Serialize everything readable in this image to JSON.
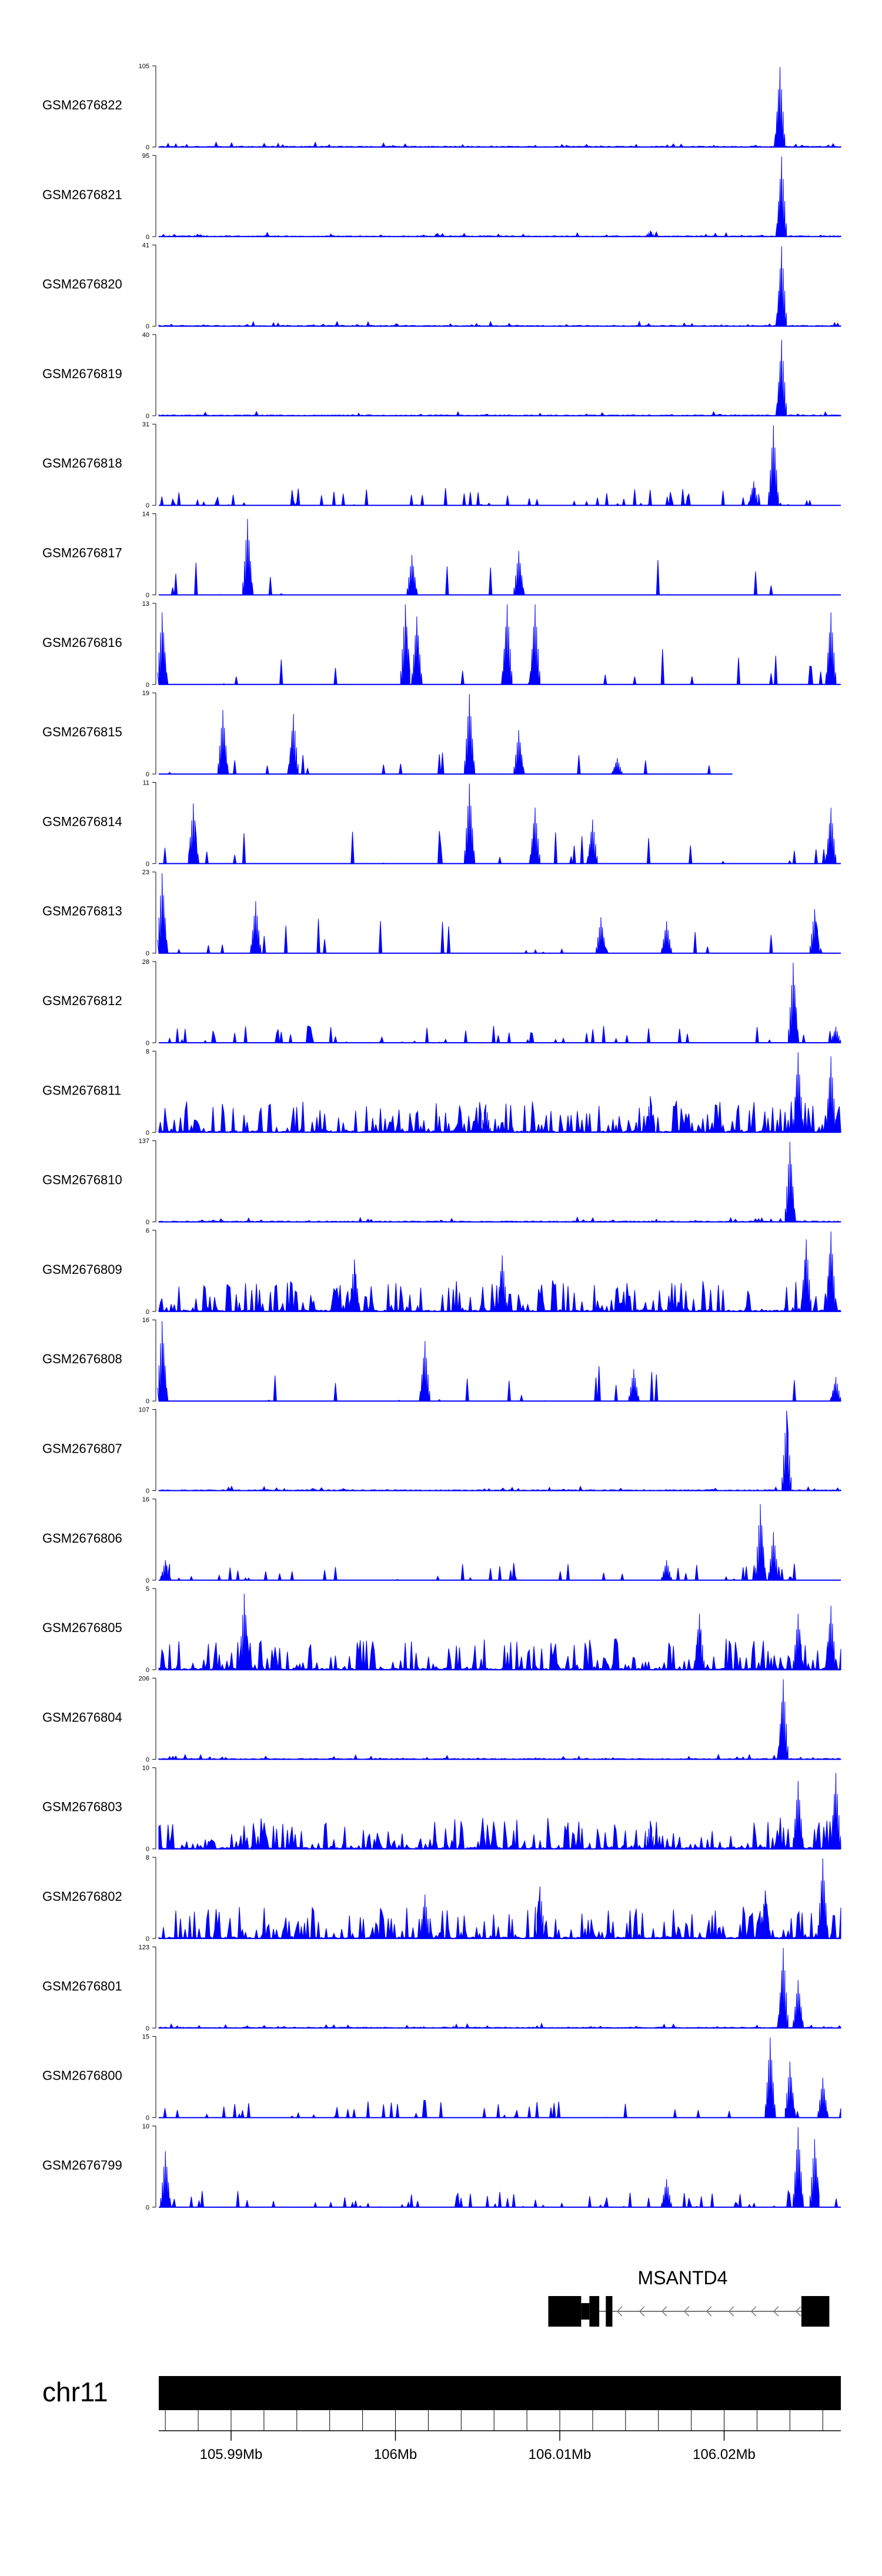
{
  "chart_data": {
    "type": "area",
    "genome": "chr11",
    "xlim_mb": [
      105.9856,
      106.0271
    ],
    "fill_color": "#0000ff",
    "tracks": [
      {
        "name": "GSM2676822",
        "ymax": "105",
        "ymin": "0",
        "profile": "dense_low",
        "peaks": [
          [
            106.0234,
            1.0
          ]
        ]
      },
      {
        "name": "GSM2676821",
        "ymax": "95",
        "ymin": "0",
        "profile": "dense_low",
        "peaks": [
          [
            106.0235,
            1.0
          ],
          [
            106.0155,
            0.07
          ]
        ]
      },
      {
        "name": "GSM2676820",
        "ymax": "41",
        "ymin": "0",
        "profile": "dense_low",
        "peaks": [
          [
            106.0235,
            1.0
          ]
        ]
      },
      {
        "name": "GSM2676819",
        "ymax": "40",
        "ymin": "0",
        "profile": "dense_low",
        "peaks": [
          [
            106.0235,
            0.95
          ]
        ]
      },
      {
        "name": "GSM2676818",
        "ymax": "31",
        "ymin": "0",
        "profile": "dense_mid",
        "peaks": [
          [
            106.023,
            1.0
          ],
          [
            106.0218,
            0.3
          ]
        ]
      },
      {
        "name": "GSM2676817",
        "ymax": "14",
        "ymin": "0",
        "profile": "sparse",
        "peaks": [
          [
            105.991,
            0.95
          ],
          [
            106.0075,
            0.55
          ],
          [
            106.001,
            0.5
          ]
        ]
      },
      {
        "name": "GSM2676816",
        "ymax": "13",
        "ymin": "0",
        "profile": "sparse",
        "peaks": [
          [
            106.0006,
            1.0
          ],
          [
            106.0068,
            1.0
          ],
          [
            106.0085,
            1.0
          ],
          [
            106.0013,
            0.85
          ],
          [
            105.9858,
            0.9
          ],
          [
            106.0265,
            0.9
          ]
        ]
      },
      {
        "name": "GSM2676815",
        "ymax": "19",
        "ymin": "0",
        "profile": "very_sparse",
        "peaks": [
          [
            106.0045,
            1.0
          ],
          [
            105.9895,
            0.8
          ],
          [
            105.9938,
            0.75
          ],
          [
            106.0075,
            0.55
          ],
          [
            106.0135,
            0.2
          ]
        ],
        "end_mb": 106.0205
      },
      {
        "name": "GSM2676814",
        "ymax": "11",
        "ymin": "0",
        "profile": "sparse",
        "peaks": [
          [
            106.0045,
            1.0
          ],
          [
            105.9877,
            0.75
          ],
          [
            106.0265,
            0.7
          ],
          [
            106.0085,
            0.7
          ],
          [
            106.012,
            0.55
          ]
        ]
      },
      {
        "name": "GSM2676813",
        "ymax": "23",
        "ymin": "0",
        "profile": "sparse",
        "peaks": [
          [
            105.9858,
            1.0
          ],
          [
            105.9915,
            0.65
          ],
          [
            106.0255,
            0.55
          ],
          [
            106.0165,
            0.4
          ],
          [
            106.0125,
            0.45
          ]
        ]
      },
      {
        "name": "GSM2676812",
        "ymax": "28",
        "ymin": "0",
        "profile": "dense_mid",
        "peaks": [
          [
            106.0242,
            1.0
          ],
          [
            106.0268,
            0.2
          ]
        ]
      },
      {
        "name": "GSM2676811",
        "ymax": "8",
        "ymin": "0",
        "profile": "dense_high",
        "peaks": [
          [
            106.0245,
            1.0
          ],
          [
            106.0265,
            0.95
          ],
          [
            106.0155,
            0.45
          ],
          [
            106.0055,
            0.35
          ]
        ]
      },
      {
        "name": "GSM2676810",
        "ymax": "137",
        "ymin": "0",
        "profile": "dense_low",
        "peaks": [
          [
            106.024,
            1.0
          ]
        ]
      },
      {
        "name": "GSM2676809",
        "ymax": "6",
        "ymin": "0",
        "profile": "dense_high",
        "peaks": [
          [
            106.0265,
            1.0
          ],
          [
            106.025,
            0.9
          ],
          [
            106.0065,
            0.7
          ],
          [
            105.9975,
            0.65
          ]
        ]
      },
      {
        "name": "GSM2676808",
        "ymax": "16",
        "ymin": "0",
        "profile": "sparse",
        "peaks": [
          [
            105.9858,
            1.0
          ],
          [
            106.0018,
            0.75
          ],
          [
            106.0268,
            0.3
          ],
          [
            106.0145,
            0.4
          ]
        ]
      },
      {
        "name": "GSM2676807",
        "ymax": "107",
        "ymin": "0",
        "profile": "dense_low",
        "peaks": [
          [
            106.0238,
            1.0
          ]
        ]
      },
      {
        "name": "GSM2676806",
        "ymax": "16",
        "ymin": "0",
        "profile": "dense_mid",
        "peaks": [
          [
            106.0222,
            0.95
          ],
          [
            106.023,
            0.6
          ],
          [
            105.986,
            0.25
          ],
          [
            106.0165,
            0.25
          ]
        ]
      },
      {
        "name": "GSM2676805",
        "ymax": "5",
        "ymin": "0",
        "profile": "dense_high",
        "peaks": [
          [
            105.9908,
            0.95
          ],
          [
            106.0265,
            0.8
          ],
          [
            106.0245,
            0.7
          ],
          [
            106.0185,
            0.7
          ]
        ]
      },
      {
        "name": "GSM2676804",
        "ymax": "206",
        "ymin": "0",
        "profile": "dense_low",
        "peaks": [
          [
            106.0236,
            1.0
          ]
        ]
      },
      {
        "name": "GSM2676803",
        "ymax": "10",
        "ymin": "0",
        "profile": "dense_high",
        "peaks": [
          [
            106.0268,
            0.95
          ],
          [
            106.0245,
            0.85
          ],
          [
            106.0155,
            0.35
          ]
        ]
      },
      {
        "name": "GSM2676802",
        "ymax": "8",
        "ymin": "0",
        "profile": "dense_high",
        "peaks": [
          [
            106.026,
            1.0
          ],
          [
            106.0088,
            0.65
          ],
          [
            106.0018,
            0.55
          ],
          [
            106.0225,
            0.6
          ]
        ]
      },
      {
        "name": "GSM2676801",
        "ymax": "123",
        "ymin": "0",
        "profile": "dense_low",
        "peaks": [
          [
            106.0236,
            1.0
          ],
          [
            106.0245,
            0.6
          ]
        ]
      },
      {
        "name": "GSM2676800",
        "ymax": "15",
        "ymin": "0",
        "profile": "dense_mid",
        "peaks": [
          [
            106.0228,
            1.0
          ],
          [
            106.024,
            0.7
          ],
          [
            106.026,
            0.5
          ]
        ]
      },
      {
        "name": "GSM2676799",
        "ymax": "10",
        "ymin": "0",
        "profile": "dense_mid",
        "peaks": [
          [
            106.0245,
            1.0
          ],
          [
            106.0255,
            0.85
          ],
          [
            105.986,
            0.7
          ],
          [
            106.0165,
            0.35
          ]
        ]
      }
    ],
    "gene": {
      "name": "MSANTD4",
      "strand": "-",
      "start_mb": 106.0093,
      "end_mb": 106.0264,
      "exons": [
        [
          106.0093,
          106.0113
        ],
        [
          106.0118,
          106.0124
        ],
        [
          106.0128,
          106.0132
        ],
        [
          106.0247,
          106.0264
        ]
      ],
      "thin_exons": [
        [
          106.0113,
          106.0118
        ]
      ]
    },
    "axis": {
      "ticks_mb": [
        105.99,
        106.0,
        106.01,
        106.02
      ],
      "tick_labels": [
        "105.99Mb",
        "106Mb",
        "106.01Mb",
        "106.02Mb"
      ],
      "minor_step_mb": 0.002
    }
  }
}
